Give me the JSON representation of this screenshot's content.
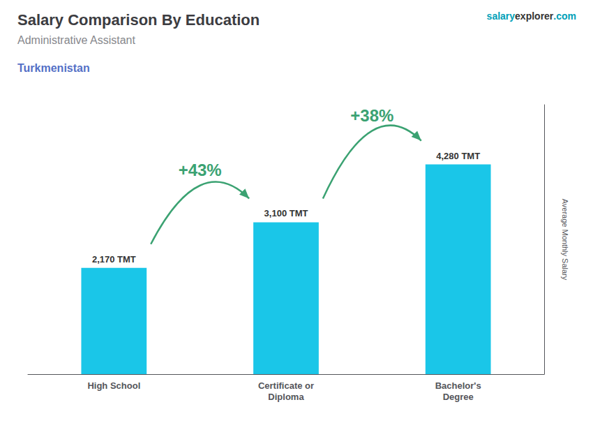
{
  "chart_data": {
    "type": "bar",
    "title": "Salary Comparison By Education",
    "subtitle": "Administrative Assistant",
    "annotations": {
      "country": "Turkmenistan",
      "watermark": [
        "salary",
        "explorer",
        ".com"
      ],
      "change_labels": [
        "+43%",
        "+38%"
      ]
    },
    "ylabel": "Average Monthly Salary",
    "categories": [
      "High School",
      "Certificate or\nDiploma",
      "Bachelor's\nDegree"
    ],
    "values": [
      2170,
      3100,
      4280
    ],
    "value_labels": [
      "2,170 TMT",
      "3,100 TMT",
      "4,280 TMT"
    ],
    "data_labels": true,
    "color": "#1ac6e8",
    "ylim": [
      0,
      5500
    ],
    "grid": false,
    "tick_labels": "x"
  }
}
